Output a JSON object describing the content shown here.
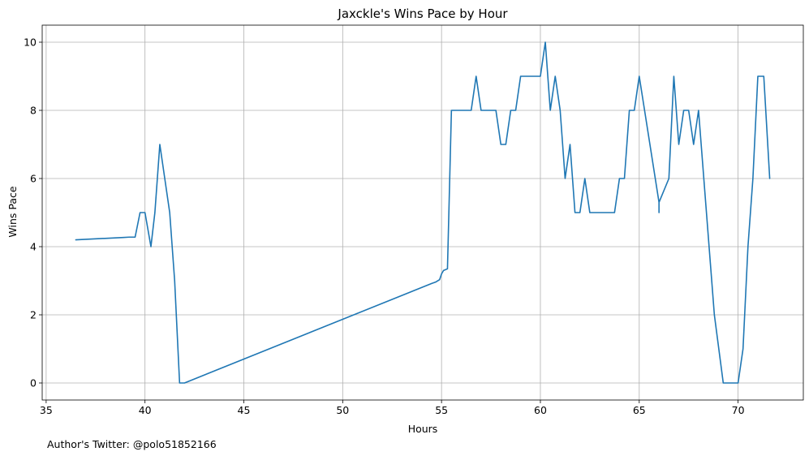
{
  "chart_data": {
    "type": "line",
    "title": "Jaxckle's Wins Pace by Hour",
    "xlabel": "Hours",
    "ylabel": "Wins Pace",
    "xlim": [
      34.8,
      73.3
    ],
    "ylim": [
      -0.5,
      10.5
    ],
    "xticks": [
      35,
      40,
      45,
      50,
      55,
      60,
      65,
      70
    ],
    "yticks": [
      0,
      2,
      4,
      6,
      8,
      10
    ],
    "grid": true,
    "legend": "none",
    "series": [
      {
        "color": "#1f77b4",
        "points": [
          [
            36.5,
            4.2
          ],
          [
            38.9,
            4.27
          ],
          [
            39.2,
            4.28
          ],
          [
            39.5,
            4.28
          ],
          [
            39.75,
            5.0
          ],
          [
            40.0,
            5.0
          ],
          [
            40.3,
            4.0
          ],
          [
            40.5,
            5.0
          ],
          [
            40.75,
            7.0
          ],
          [
            41.25,
            5.0
          ],
          [
            41.5,
            3.0
          ],
          [
            41.75,
            0.0
          ],
          [
            42.0,
            0.0
          ],
          [
            54.5,
            2.92
          ],
          [
            54.7,
            2.96
          ],
          [
            54.9,
            3.03
          ],
          [
            55.0,
            3.2
          ],
          [
            55.1,
            3.3
          ],
          [
            55.3,
            3.35
          ],
          [
            55.5,
            8.0
          ],
          [
            56.5,
            8.0
          ],
          [
            56.75,
            9.0
          ],
          [
            57.0,
            8.0
          ],
          [
            57.75,
            8.0
          ],
          [
            58.0,
            7.0
          ],
          [
            58.25,
            7.0
          ],
          [
            58.5,
            8.0
          ],
          [
            58.75,
            8.0
          ],
          [
            59.0,
            9.0
          ],
          [
            60.0,
            9.0
          ],
          [
            60.25,
            10.0
          ],
          [
            60.5,
            8.0
          ],
          [
            60.75,
            9.0
          ],
          [
            61.0,
            8.0
          ],
          [
            61.25,
            6.0
          ],
          [
            61.5,
            7.0
          ],
          [
            61.75,
            5.0
          ],
          [
            62.0,
            5.0
          ],
          [
            62.25,
            6.0
          ],
          [
            62.5,
            5.0
          ],
          [
            63.75,
            5.0
          ],
          [
            64.0,
            6.0
          ],
          [
            64.25,
            6.0
          ],
          [
            64.5,
            8.0
          ],
          [
            64.75,
            8.0
          ],
          [
            65.0,
            9.0
          ],
          [
            66.0,
            5.3
          ],
          [
            66.0,
            5.0
          ],
          [
            66.0,
            5.3
          ],
          [
            66.5,
            6.0
          ],
          [
            66.75,
            9.0
          ],
          [
            67.0,
            7.0
          ],
          [
            67.25,
            8.0
          ],
          [
            67.5,
            8.0
          ],
          [
            67.75,
            7.0
          ],
          [
            68.0,
            8.0
          ],
          [
            68.8,
            2.0
          ],
          [
            69.25,
            0.0
          ],
          [
            70.0,
            0.0
          ],
          [
            70.25,
            1.0
          ],
          [
            70.5,
            4.0
          ],
          [
            70.75,
            6.0
          ],
          [
            71.0,
            9.0
          ],
          [
            71.3,
            9.0
          ],
          [
            71.6,
            6.0
          ]
        ]
      }
    ]
  },
  "footer": {
    "note": "Author's Twitter: @polo51852166"
  },
  "colors": {
    "grid": "#b0b0b0",
    "axis": "#000000",
    "line": "#1f77b4"
  }
}
